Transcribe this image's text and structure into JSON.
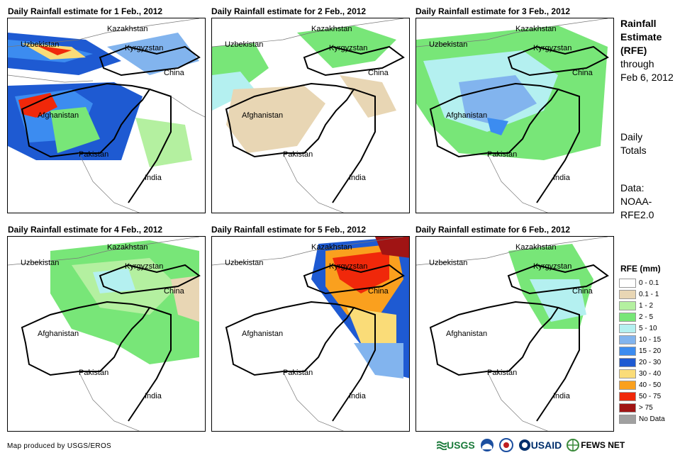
{
  "panels": [
    {
      "title": "Daily Rainfall estimate for 1 Feb., 2012"
    },
    {
      "title": "Daily Rainfall estimate for 2 Feb., 2012"
    },
    {
      "title": "Daily Rainfall estimate for 3 Feb., 2012"
    },
    {
      "title": "Daily Rainfall estimate for 4 Feb., 2012"
    },
    {
      "title": "Daily Rainfall estimate for 5 Feb., 2012"
    },
    {
      "title": "Daily Rainfall estimate for 6 Feb., 2012"
    }
  ],
  "countries": {
    "kazakhstan": "Kazakhstan",
    "uzbekistan": "Uzbekistan",
    "kyrgyzstan": "Kyrgyzstan",
    "china": "China",
    "afghanistan": "Afghanistan",
    "pakistan": "Pakistan",
    "india": "India"
  },
  "sidebar": {
    "title_line1": "Rainfall",
    "title_line2": "Estimate",
    "title_line3": "(RFE)",
    "through": "through",
    "date": "Feb 6, 2012",
    "daily": "Daily",
    "totals": "Totals",
    "data_label": "Data:",
    "data_source1": "NOAA-",
    "data_source2": "RFE2.0"
  },
  "legend": {
    "title": "RFE (mm)",
    "items": [
      {
        "label": "0 - 0.1",
        "color": "#ffffff"
      },
      {
        "label": "0.1 - 1",
        "color": "#e8d6b4"
      },
      {
        "label": "1 - 2",
        "color": "#b4f0a0"
      },
      {
        "label": "2 - 5",
        "color": "#78e678"
      },
      {
        "label": "5 - 10",
        "color": "#b4f0f0"
      },
      {
        "label": "10 - 15",
        "color": "#82b4ee"
      },
      {
        "label": "15 - 20",
        "color": "#3c8cf0"
      },
      {
        "label": "20 - 30",
        "color": "#1e5ad2"
      },
      {
        "label": "30 - 40",
        "color": "#fadc78"
      },
      {
        "label": "40 - 50",
        "color": "#faa01e"
      },
      {
        "label": "50 - 75",
        "color": "#f0280a"
      },
      {
        "label": "> 75",
        "color": "#a01414"
      },
      {
        "label": "No Data",
        "color": "#a0a0a0"
      }
    ]
  },
  "footer": {
    "credit": "Map produced by USGS/EROS",
    "logo_usgs": "USGS",
    "logo_usaid": "USAID",
    "logo_fewsnet": "FEWS NET"
  }
}
